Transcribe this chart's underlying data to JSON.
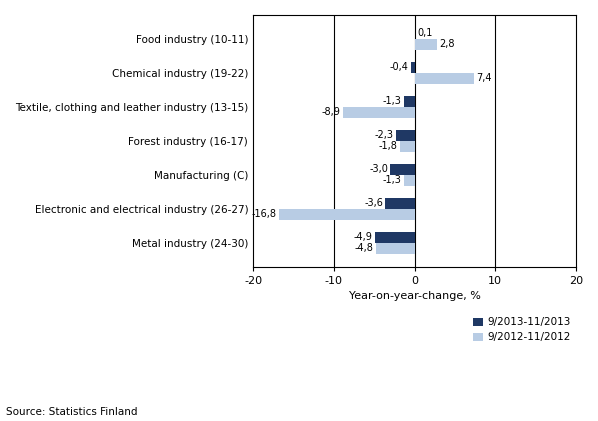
{
  "categories": [
    "Metal industry (24-30)",
    "Electronic and electrical industry (26-27)",
    "Manufacturing (C)",
    "Forest industry (16-17)",
    "Textile, clothing and leather industry (13-15)",
    "Chemical industry (19-22)",
    "Food industry (10-11)"
  ],
  "series_2013": [
    -4.9,
    -3.6,
    -3.0,
    -2.3,
    -1.3,
    -0.4,
    0.1
  ],
  "series_2012": [
    -4.8,
    -16.8,
    -1.3,
    -1.8,
    -8.9,
    7.4,
    2.8
  ],
  "color_2013": "#1F3864",
  "color_2012": "#B8CCE4",
  "xlabel": "Year-on-year-change, %",
  "legend_2013": "9/2013-11/2013",
  "legend_2012": "9/2012-11/2012",
  "source": "Source: Statistics Finland",
  "xlim": [
    -20,
    20
  ],
  "xticks": [
    -20,
    -10,
    0,
    10,
    20
  ],
  "xticklabels": [
    "-20",
    "-10",
    "0",
    "10",
    "20"
  ],
  "label_2013": [
    "-4,9",
    "-3,6",
    "-3,0",
    "-2,3",
    "-1,3",
    "-0,4",
    "0,1"
  ],
  "label_2012": [
    "-4,8",
    "-16,8",
    "-1,3",
    "-1,8",
    "-8,9",
    "7,4",
    "2,8"
  ]
}
